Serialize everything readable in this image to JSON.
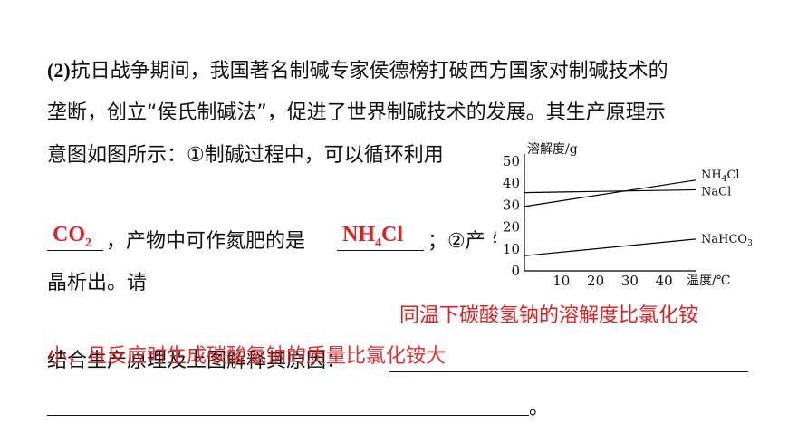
{
  "question": {
    "line1_num": "(2)",
    "line1": "抗日战争期间，我国著名制碱专家侯德榜打破西方国家对制碱技术的",
    "line2": "垄断，创立“侯氏制碱法”，促进了世界制碱技术的发展。其生产原理示",
    "line3": "意图如图所示：①制碱过程中，可以循环利用",
    "line4_mid": "，产物中可作氮肥的是",
    "line4_end": "；②产",
    "line4_tail": "物",
    "line5": "晶析出。请",
    "line6": "结合生产原理及上图解释其原因：",
    "line7_end": "。"
  },
  "answers": {
    "a1_main": "CO",
    "a1_sub": "2",
    "a2_main": "NH",
    "a2_sub": "4",
    "a2_end": "Cl",
    "a3_line1": "同温下碳酸氢钠的溶解度比氯化铵",
    "a3_line2": "小，且反应时生成碳酸氢钠的质量比氯化铵大"
  },
  "chart_data": {
    "type": "line",
    "ylabel": "溶解度/g",
    "xlabel": "温度/℃",
    "xticks": [
      "10",
      "20",
      "30",
      "40"
    ],
    "yticks": [
      "0",
      "10",
      "20",
      "30",
      "40",
      "50"
    ],
    "ylim": [
      0,
      50
    ],
    "xlim": [
      0,
      50
    ],
    "series": [
      {
        "name": "NH4Cl",
        "name_main": "NH",
        "name_sub": "4",
        "name_end": "Cl",
        "x": [
          0,
          50
        ],
        "y": [
          29.4,
          41.4
        ]
      },
      {
        "name": "NaCl",
        "x": [
          0,
          50
        ],
        "y": [
          35.7,
          37.0
        ]
      },
      {
        "name": "NaHCO3",
        "name_main": "NaHCO",
        "name_sub": "3",
        "x": [
          0,
          50
        ],
        "y": [
          6.9,
          14.5
        ]
      }
    ]
  },
  "colors": {
    "answer": "#e02020",
    "text": "#111111"
  }
}
